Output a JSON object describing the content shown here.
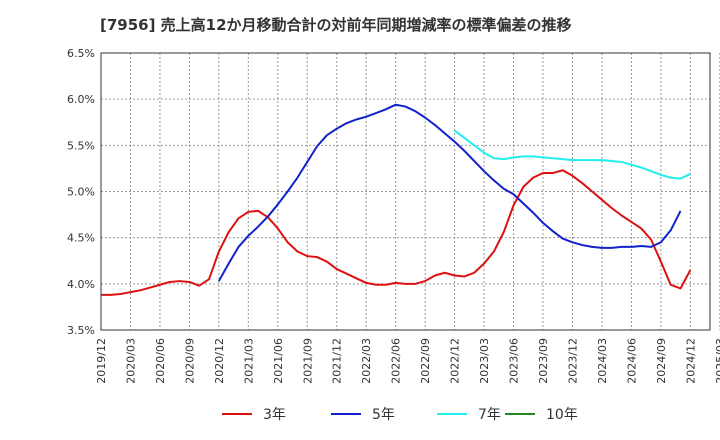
{
  "chart_data": {
    "type": "line",
    "title": "[7956]  売上高12か月移動合計の対前年同期増減率の標準偏差の推移",
    "xlabel": "",
    "ylabel": "",
    "ylim": [
      3.5,
      6.5
    ],
    "yticks": [
      "3.5%",
      "4.0%",
      "4.5%",
      "5.0%",
      "5.5%",
      "6.0%",
      "6.5%"
    ],
    "yticks_values": [
      3.5,
      4.0,
      4.5,
      5.0,
      5.5,
      6.0,
      6.5
    ],
    "xticks": [
      "2019/12",
      "2020/03",
      "2020/06",
      "2020/09",
      "2020/12",
      "2021/03",
      "2021/06",
      "2021/09",
      "2021/12",
      "2022/03",
      "2022/06",
      "2022/09",
      "2022/12",
      "2023/03",
      "2023/06",
      "2023/09",
      "2023/12",
      "2024/03",
      "2024/06",
      "2024/09",
      "2024/12",
      "2025/03"
    ],
    "grid": true,
    "legend_position": "bottom",
    "series": [
      {
        "name": "3年",
        "color": "#dd1111",
        "start_index": 0,
        "values": [
          3.88,
          3.88,
          3.89,
          3.91,
          3.93,
          3.96,
          3.99,
          4.02,
          4.03,
          4.02,
          3.98,
          4.05,
          4.35,
          4.56,
          4.71,
          4.78,
          4.79,
          4.72,
          4.6,
          4.45,
          4.35,
          4.3,
          4.29,
          4.24,
          4.16,
          4.11,
          4.06,
          4.01,
          3.99,
          3.99,
          4.01,
          4.0,
          4.0,
          4.03,
          4.09,
          4.12,
          4.09,
          4.08,
          4.12,
          4.22,
          4.35,
          4.56,
          4.85,
          5.05,
          5.15,
          5.2,
          5.2,
          5.23,
          5.17,
          5.09,
          5.0,
          4.91,
          4.82,
          4.74,
          4.67,
          4.6,
          4.48,
          4.24,
          3.99,
          3.95,
          4.15
        ]
      },
      {
        "name": "5年",
        "color": "#1122cc",
        "start_index": 12,
        "values": [
          4.03,
          4.22,
          4.4,
          4.52,
          4.62,
          4.73,
          4.86,
          5.0,
          5.15,
          5.32,
          5.49,
          5.61,
          5.68,
          5.74,
          5.78,
          5.81,
          5.85,
          5.89,
          5.94,
          5.92,
          5.87,
          5.8,
          5.72,
          5.63,
          5.54,
          5.44,
          5.33,
          5.22,
          5.12,
          5.03,
          4.97,
          4.87,
          4.77,
          4.66,
          4.57,
          4.49,
          4.45,
          4.42,
          4.4,
          4.39,
          4.39,
          4.4,
          4.4,
          4.41,
          4.4,
          4.45,
          4.58,
          4.79
        ]
      },
      {
        "name": "7年",
        "color": "#22eeee",
        "start_index": 36,
        "values": [
          5.66,
          5.58,
          5.5,
          5.42,
          5.36,
          5.35,
          5.37,
          5.38,
          5.38,
          5.37,
          5.36,
          5.35,
          5.34,
          5.34,
          5.34,
          5.34,
          5.33,
          5.32,
          5.29,
          5.26,
          5.22,
          5.18,
          5.15,
          5.14,
          5.19
        ]
      },
      {
        "name": "10年",
        "color": "#228822",
        "start_index": 0,
        "values": []
      }
    ]
  }
}
